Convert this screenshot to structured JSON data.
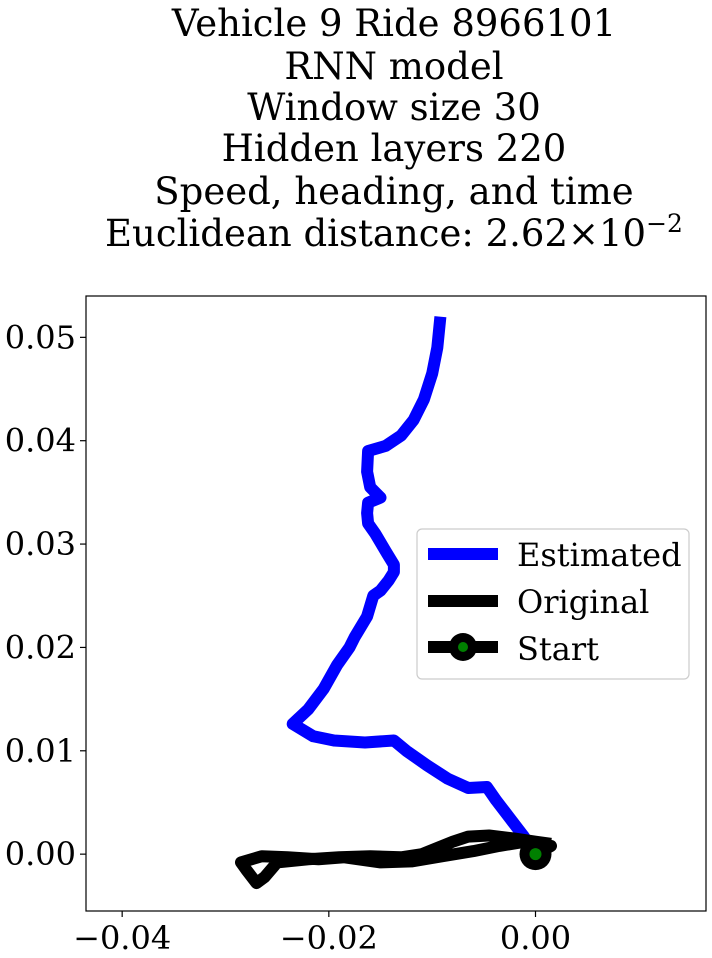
{
  "chart_data": {
    "type": "line",
    "title_lines": [
      "Vehicle 9 Ride 8966101",
      "RNN model",
      "Window size 30",
      "Hidden layers 220",
      "Speed, heading, and time"
    ],
    "distance_prefix": "Euclidean distance: ",
    "distance_mantissa": "2.62",
    "distance_times": "×10",
    "distance_exponent": "−2",
    "xlabel": "",
    "ylabel": "",
    "xlim": [
      -0.0435,
      0.0165
    ],
    "ylim": [
      -0.0055,
      0.054
    ],
    "xticks": [
      -0.04,
      -0.02,
      0.0
    ],
    "xtick_labels": [
      "−0.04",
      "−0.02",
      "0.00"
    ],
    "yticks": [
      0.0,
      0.01,
      0.02,
      0.03,
      0.04,
      0.05
    ],
    "ytick_labels": [
      "0.00",
      "0.01",
      "0.02",
      "0.03",
      "0.04",
      "0.05"
    ],
    "grid": false,
    "legend_position": "center-right",
    "series": [
      {
        "name": "Estimated",
        "color": "#0000ff",
        "points": [
          [
            0.0,
            0.0
          ],
          [
            -0.0012,
            0.0018
          ],
          [
            -0.0025,
            0.0035
          ],
          [
            -0.0038,
            0.0052
          ],
          [
            -0.0047,
            0.0065
          ],
          [
            -0.0065,
            0.0064
          ],
          [
            -0.0085,
            0.0073
          ],
          [
            -0.0105,
            0.0086
          ],
          [
            -0.0125,
            0.01
          ],
          [
            -0.0137,
            0.011
          ],
          [
            -0.0165,
            0.0108
          ],
          [
            -0.0195,
            0.011
          ],
          [
            -0.0215,
            0.0114
          ],
          [
            -0.0235,
            0.0126
          ],
          [
            -0.022,
            0.014
          ],
          [
            -0.0205,
            0.016
          ],
          [
            -0.0192,
            0.0183
          ],
          [
            -0.018,
            0.02
          ],
          [
            -0.0175,
            0.021
          ],
          [
            -0.0163,
            0.023
          ],
          [
            -0.0157,
            0.025
          ],
          [
            -0.015,
            0.0255
          ],
          [
            -0.0142,
            0.0265
          ],
          [
            -0.0137,
            0.0273
          ],
          [
            -0.0137,
            0.028
          ],
          [
            -0.0145,
            0.0293
          ],
          [
            -0.0155,
            0.031
          ],
          [
            -0.0162,
            0.032
          ],
          [
            -0.0163,
            0.033
          ],
          [
            -0.0162,
            0.034
          ],
          [
            -0.015,
            0.0345
          ],
          [
            -0.016,
            0.0355
          ],
          [
            -0.0163,
            0.037
          ],
          [
            -0.0162,
            0.039
          ],
          [
            -0.0145,
            0.0395
          ],
          [
            -0.013,
            0.0405
          ],
          [
            -0.0118,
            0.042
          ],
          [
            -0.0108,
            0.044
          ],
          [
            -0.01,
            0.0465
          ],
          [
            -0.0095,
            0.049
          ],
          [
            -0.0092,
            0.052
          ]
        ]
      },
      {
        "name": "Original",
        "color": "#000000",
        "points": [
          [
            0.0,
            0.0
          ],
          [
            0.0015,
            0.0008
          ],
          [
            -0.001,
            0.0012
          ],
          [
            -0.0035,
            0.0008
          ],
          [
            -0.006,
            0.0003
          ],
          [
            -0.009,
            -0.0002
          ],
          [
            -0.012,
            -0.0007
          ],
          [
            -0.015,
            -0.0008
          ],
          [
            -0.0185,
            -0.0003
          ],
          [
            -0.021,
            -0.0005
          ],
          [
            -0.024,
            -0.0003
          ],
          [
            -0.0265,
            -0.0002
          ],
          [
            -0.0285,
            -0.0008
          ],
          [
            -0.028,
            -0.0015
          ],
          [
            -0.027,
            -0.0028
          ],
          [
            -0.0262,
            -0.0022
          ],
          [
            -0.025,
            -0.0008
          ],
          [
            -0.022,
            -0.0005
          ],
          [
            -0.019,
            -0.0003
          ],
          [
            -0.016,
            -0.0002
          ],
          [
            -0.013,
            -0.0003
          ],
          [
            -0.011,
            0.0
          ],
          [
            -0.0095,
            0.0006
          ],
          [
            -0.008,
            0.0012
          ],
          [
            -0.0065,
            0.0017
          ],
          [
            -0.0045,
            0.0018
          ],
          [
            -0.002,
            0.0015
          ],
          [
            0.0,
            0.0012
          ],
          [
            0.0015,
            0.001
          ]
        ]
      }
    ],
    "start": {
      "name": "Start",
      "x": 0.0,
      "y": 0.0,
      "marker_color": "#000000",
      "fill_color": "#008000"
    }
  }
}
